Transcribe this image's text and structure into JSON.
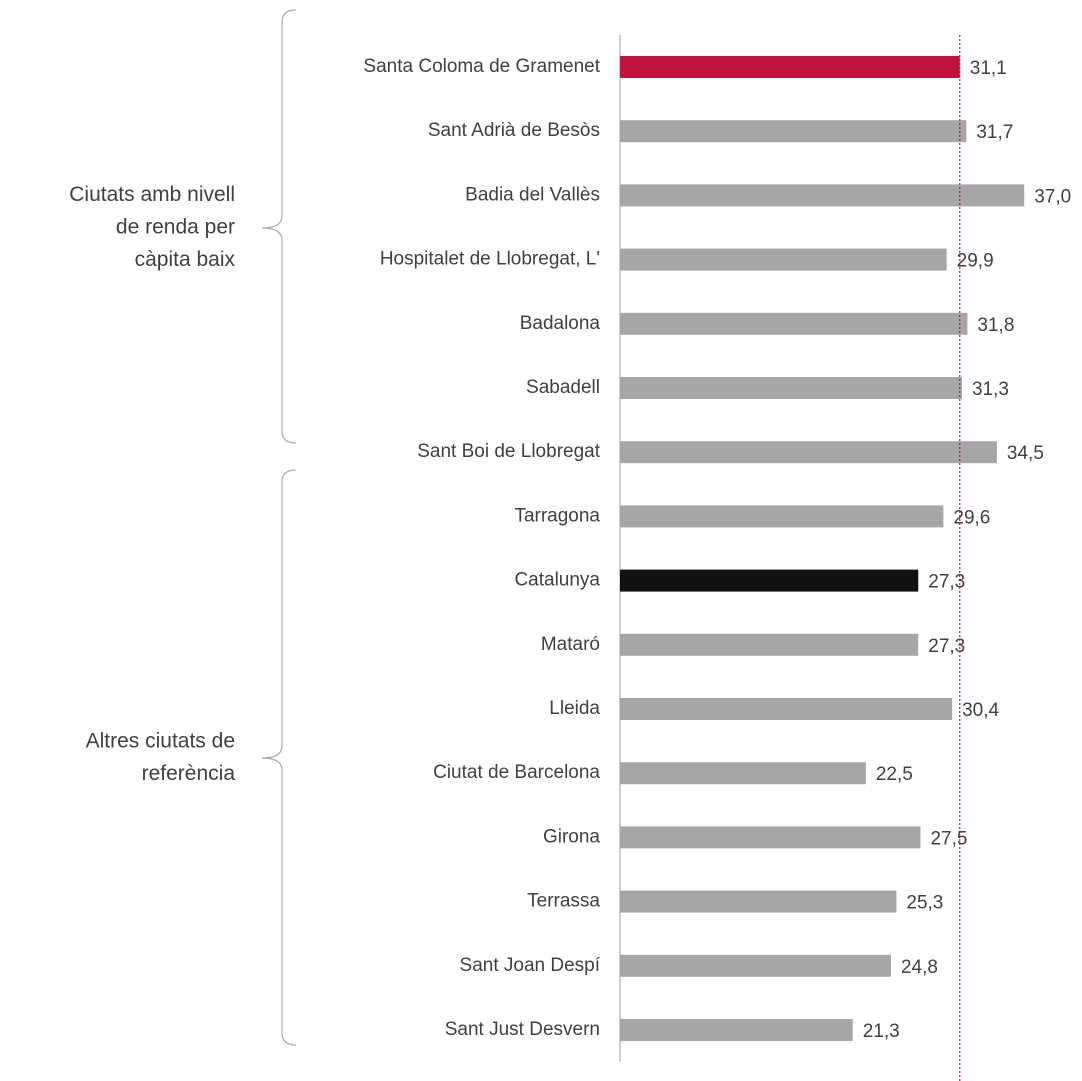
{
  "chart_data": {
    "type": "barh",
    "categories": [
      "Santa Coloma de Gramenet",
      "Sant Adrià de Besòs",
      "Badia del Vallès",
      "Hospitalet de Llobregat, L'",
      "Badalona",
      "Sabadell",
      "Sant Boi de Llobregat",
      "Tarragona",
      "Catalunya",
      "Mataró",
      "Lleida",
      "Ciutat de Barcelona",
      "Girona",
      "Terrassa",
      "Sant Joan Despí",
      "Sant Just Desvern"
    ],
    "values": [
      31.1,
      31.7,
      37.0,
      29.9,
      31.8,
      31.3,
      34.5,
      29.6,
      27.3,
      27.3,
      30.4,
      22.5,
      27.5,
      25.3,
      24.8,
      21.3
    ],
    "value_labels": [
      "31,1",
      "31,7",
      "37,0",
      "29,9",
      "31,8",
      "31,3",
      "34,5",
      "29,6",
      "27,3",
      "27,3",
      "30,4",
      "22,5",
      "27,5",
      "25,3",
      "24,8",
      "21,3"
    ],
    "colors": [
      "#c0143c",
      "#a6a6a6",
      "#a6a6a6",
      "#a6a6a6",
      "#a6a6a6",
      "#a6a6a6",
      "#a6a6a6",
      "#a6a6a6",
      "#111111",
      "#a6a6a6",
      "#a6a6a6",
      "#a6a6a6",
      "#a6a6a6",
      "#a6a6a6",
      "#a6a6a6",
      "#a6a6a6"
    ],
    "reference_line_color": "#c0143c",
    "xlim": [
      0,
      40
    ],
    "groups": [
      [
        "Ciutats amb nivell",
        "de renda per",
        "càpita baix"
      ],
      [
        "Altres ciutats de",
        "referència"
      ]
    ]
  }
}
